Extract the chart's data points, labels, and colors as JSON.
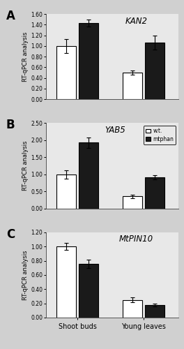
{
  "panels": [
    {
      "label": "A",
      "gene": "KAN2",
      "ylim": [
        0,
        1.6
      ],
      "yticks": [
        0.0,
        0.2,
        0.4,
        0.6,
        0.8,
        1.0,
        1.2,
        1.4,
        1.6
      ],
      "shoot_buds_wt": 1.0,
      "shoot_buds_wt_err": 0.13,
      "shoot_buds_mt": 1.43,
      "shoot_buds_mt_err": 0.07,
      "young_leaves_wt": 0.5,
      "young_leaves_wt_err": 0.04,
      "young_leaves_mt": 1.06,
      "young_leaves_mt_err": 0.13,
      "show_legend": false
    },
    {
      "label": "B",
      "gene": "YAB5",
      "ylim": [
        0,
        2.5
      ],
      "yticks": [
        0.0,
        0.5,
        1.0,
        1.5,
        2.0,
        2.5
      ],
      "shoot_buds_wt": 1.0,
      "shoot_buds_wt_err": 0.12,
      "shoot_buds_mt": 1.93,
      "shoot_buds_mt_err": 0.15,
      "young_leaves_wt": 0.35,
      "young_leaves_wt_err": 0.05,
      "young_leaves_mt": 0.92,
      "young_leaves_mt_err": 0.06,
      "show_legend": true
    },
    {
      "label": "C",
      "gene": "MtPIN10",
      "ylim": [
        0,
        1.2
      ],
      "yticks": [
        0.0,
        0.2,
        0.4,
        0.6,
        0.8,
        1.0,
        1.2
      ],
      "shoot_buds_wt": 1.0,
      "shoot_buds_wt_err": 0.05,
      "shoot_buds_mt": 0.76,
      "shoot_buds_mt_err": 0.06,
      "young_leaves_wt": 0.25,
      "young_leaves_wt_err": 0.03,
      "young_leaves_mt": 0.18,
      "young_leaves_mt_err": 0.02,
      "show_legend": false
    }
  ],
  "wt_color": "#ffffff",
  "mt_color": "#1a1a1a",
  "bar_edge_color": "#000000",
  "bar_width": 0.28,
  "ylabel": "RT-qPCR analysis",
  "xlabel_labels": [
    "Shoot buds",
    "Young leaves"
  ],
  "legend_wt": "w.t.",
  "legend_mt": "mtphan",
  "capsize": 2,
  "error_lw": 0.8,
  "bg_color": "#e8e8e8",
  "fig_bg": "#d0d0d0"
}
